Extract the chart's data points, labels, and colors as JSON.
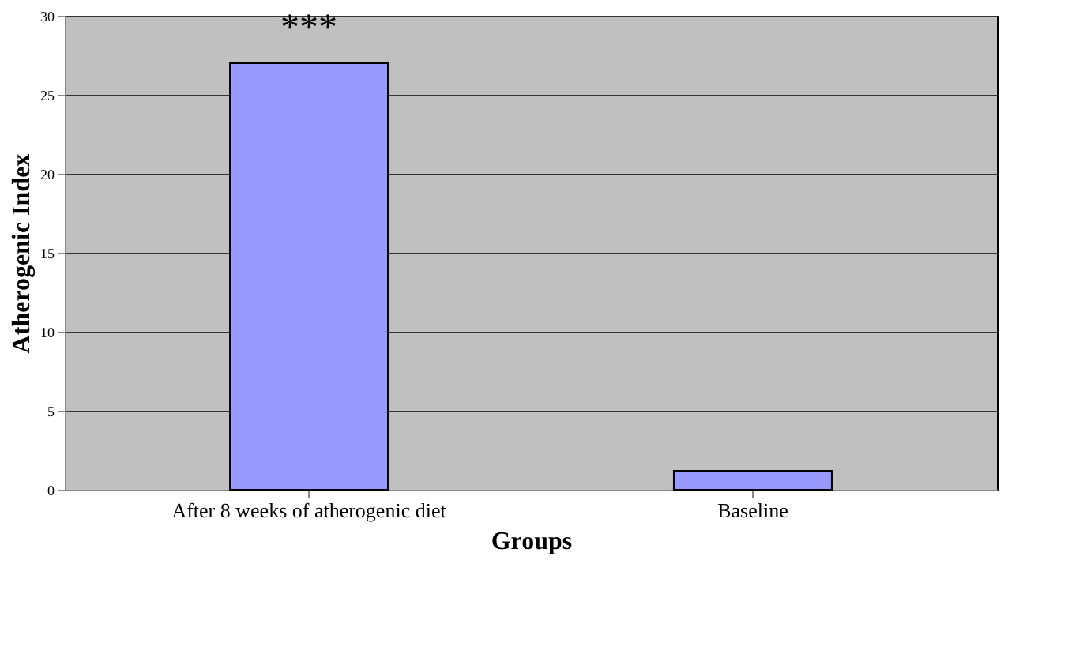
{
  "chart_data": {
    "type": "bar",
    "xlabel": "Groups",
    "ylabel": "Atherogenic Index",
    "categories": [
      "After 8 weeks of atherogenic diet",
      "Baseline"
    ],
    "values": [
      27,
      1.2
    ],
    "color": "#9999ff",
    "ylim": [
      0,
      30
    ],
    "yticks": [
      0,
      5,
      10,
      15,
      20,
      25,
      30
    ],
    "grid": "y",
    "annotations": [
      {
        "text": "***",
        "x": "After 8 weeks of atherogenic diet",
        "y": 27
      }
    ]
  }
}
